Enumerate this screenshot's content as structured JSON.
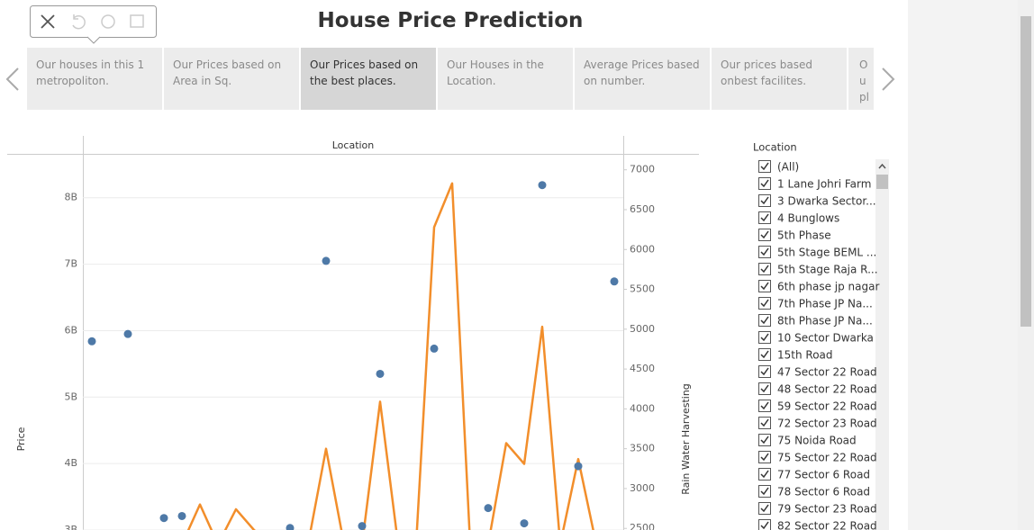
{
  "title": "House Price Prediction",
  "tabs": [
    "Our houses in this 1 metropoliton.",
    "Our Prices based on Area in Sq.",
    "Our Prices based on the best places.",
    "Our Houses in the Location.",
    "Average Prices based on number.",
    "Our prices based onbest facilites.",
    "Ou pla"
  ],
  "selected_tab": 2,
  "chart_data": {
    "type": "combo",
    "x_label": "Location",
    "y_label": "Price",
    "y2_label": "Rain Water Harvesting",
    "categories": [
      null,
      null,
      null,
      null,
      null,
      null,
      null,
      null,
      null,
      null,
      null,
      null,
      null,
      null,
      null,
      null,
      null,
      null,
      null,
      null,
      null,
      null,
      null,
      null,
      null,
      null,
      null,
      null,
      null,
      null
    ],
    "series": [
      {
        "type": "scatter",
        "color": "#4e79a7",
        "values": [
          5840000000,
          null,
          5950000000,
          null,
          3180000000,
          3210000000,
          null,
          null,
          null,
          null,
          null,
          3030000000,
          null,
          7050000000,
          null,
          3060000000,
          5350000000,
          null,
          null,
          5730000000,
          null,
          null,
          3330000000,
          null,
          3100000000,
          8190000000,
          null,
          3960000000,
          null,
          6740000000
        ]
      },
      {
        "type": "line",
        "axis": "y2",
        "color": "#f28e2b",
        "values": [
          2300,
          2300,
          2300,
          2300,
          2300,
          2300,
          2800,
          2300,
          2740,
          2480,
          2300,
          2300,
          2300,
          3500,
          2300,
          2300,
          4090,
          2300,
          2300,
          6280,
          6830,
          2300,
          2300,
          3570,
          3310,
          5030,
          2300,
          3370,
          2300,
          2300
        ]
      }
    ],
    "ylim": [
      3000000000,
      8660000000
    ],
    "yticks": [
      {
        "value": 3000000000,
        "label": "3B"
      },
      {
        "value": 4000000000,
        "label": "4B"
      },
      {
        "value": 5000000000,
        "label": "5B"
      },
      {
        "value": 6000000000,
        "label": "6B"
      },
      {
        "value": 7000000000,
        "label": "7B"
      },
      {
        "value": 8000000000,
        "label": "8B"
      }
    ],
    "y2lim": [
      2480,
      7200
    ],
    "y2ticks": [
      2500,
      3000,
      3500,
      4000,
      4500,
      5000,
      5500,
      6000,
      6500,
      7000
    ],
    "grid": true
  },
  "filter": {
    "title": "Location",
    "items": [
      "(All)",
      "1 Lane Johri Farm",
      "3 Dwarka Sector...",
      "4 Bunglows",
      "5th Phase",
      "5th Stage BEML ...",
      "5th Stage Raja R...",
      "6th phase jp nagar",
      "7th Phase JP Na...",
      "8th Phase JP Na...",
      "10 Sector Dwarka",
      "15th Road",
      "47 Sector 22 Road",
      "48 Sector 22 Road",
      "59 Sector 22 Road",
      "72 Sector 23 Road",
      "75 Noida Road",
      "75 Sector 22 Road",
      "77 Sector 6 Road",
      "78 Sector 6 Road",
      "79 Sector 23 Road",
      "82 Sector 22 Road"
    ]
  }
}
